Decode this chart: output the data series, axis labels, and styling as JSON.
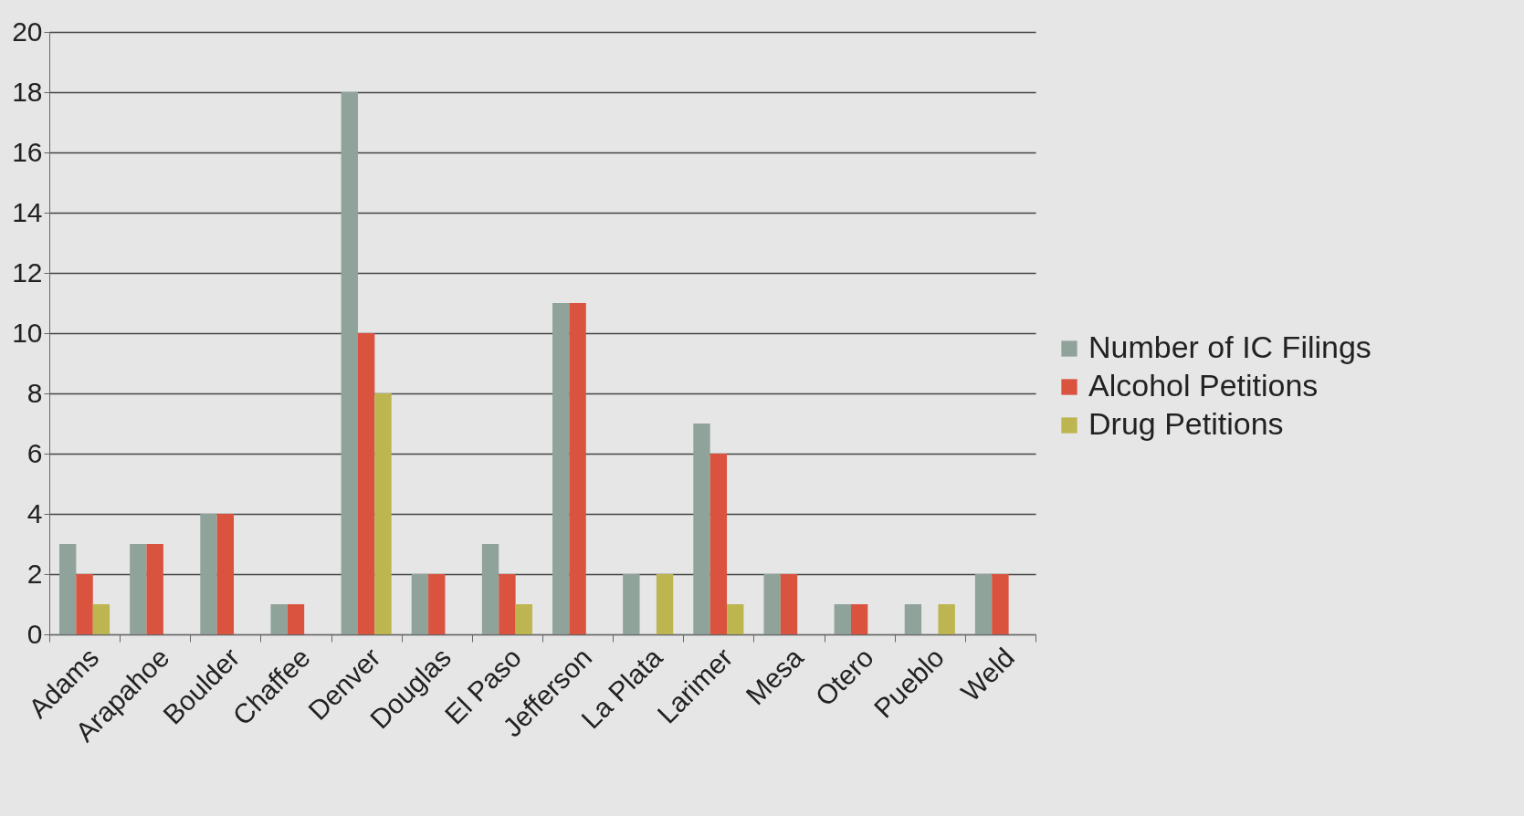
{
  "chart_data": {
    "type": "bar",
    "categories": [
      "Adams",
      "Arapahoe",
      "Boulder",
      "Chaffee",
      "Denver",
      "Douglas",
      "El Paso",
      "Jefferson",
      "La Plata",
      "Larimer",
      "Mesa",
      "Otero",
      "Pueblo",
      "Weld"
    ],
    "series": [
      {
        "name": "Number of IC Filings",
        "color": "#8fa39a",
        "values": [
          3,
          3,
          4,
          1,
          18,
          2,
          3,
          11,
          2,
          7,
          2,
          1,
          1,
          2
        ]
      },
      {
        "name": "Alcohol Petitions",
        "color": "#d9533e",
        "values": [
          2,
          3,
          4,
          1,
          10,
          2,
          2,
          11,
          0,
          6,
          2,
          1,
          0,
          2
        ]
      },
      {
        "name": "Drug Petitions",
        "color": "#bdb54f",
        "values": [
          1,
          0,
          0,
          0,
          8,
          0,
          1,
          0,
          2,
          1,
          0,
          0,
          1,
          0
        ]
      }
    ],
    "ylim": [
      0,
      20
    ],
    "yticks": [
      0,
      2,
      4,
      6,
      8,
      10,
      12,
      14,
      16,
      18,
      20
    ],
    "grid": "y",
    "legend": "right"
  }
}
